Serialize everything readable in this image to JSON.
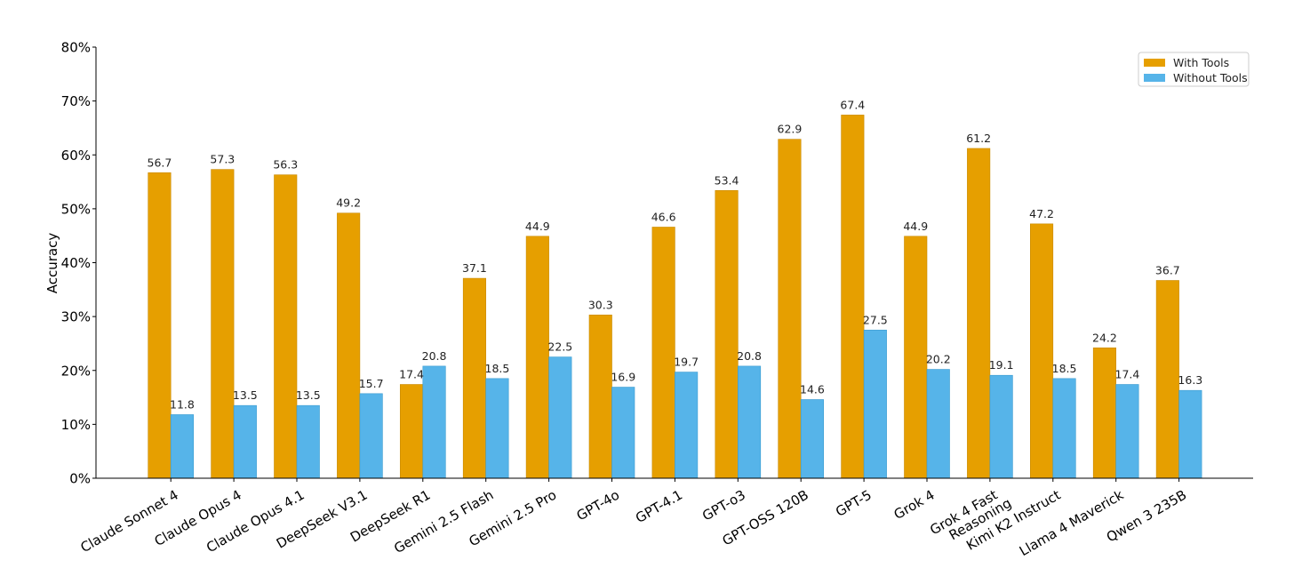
{
  "chart_data": {
    "type": "bar",
    "title": "",
    "xlabel": "",
    "ylabel": "Accuracy",
    "ylim": [
      0,
      80
    ],
    "y_tick_suffix": "%",
    "y_ticks": [
      0,
      10,
      20,
      30,
      40,
      50,
      60,
      70,
      80
    ],
    "grid": false,
    "legend_position": "top-right",
    "categories": [
      "Claude Sonnet 4",
      "Claude Opus 4",
      "Claude Opus 4.1",
      "DeepSeek V3.1",
      "DeepSeek R1",
      "Gemini 2.5 Flash",
      "Gemini 2.5 Pro",
      "GPT-4o",
      "GPT-4.1",
      "GPT-o3",
      "GPT-OSS 120B",
      "GPT-5",
      "Grok 4",
      "Grok 4 Fast\nReasoning",
      "Kimi K2 Instruct",
      "Llama 4 Maverick",
      "Qwen 3 235B"
    ],
    "series": [
      {
        "name": "With Tools",
        "color": "#E69F00",
        "values": [
          56.7,
          57.3,
          56.3,
          49.2,
          17.4,
          37.1,
          44.9,
          30.3,
          46.6,
          53.4,
          62.9,
          67.4,
          44.9,
          61.2,
          47.2,
          24.2,
          36.7
        ]
      },
      {
        "name": "Without Tools",
        "color": "#56B4E9",
        "values": [
          11.8,
          13.5,
          13.5,
          15.7,
          20.8,
          18.5,
          22.5,
          16.9,
          19.7,
          20.8,
          14.6,
          27.5,
          20.2,
          19.1,
          18.5,
          17.4,
          16.3
        ]
      }
    ]
  }
}
